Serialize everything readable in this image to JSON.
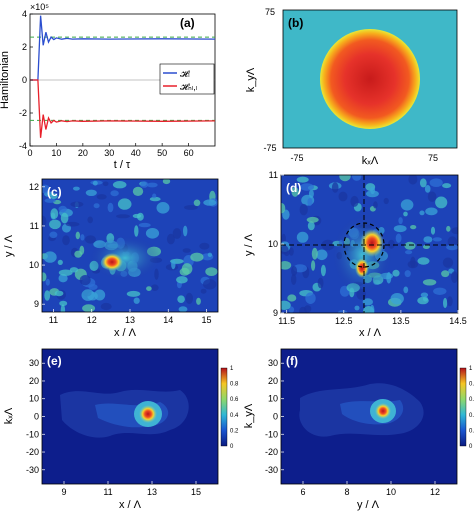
{
  "figure": {
    "panels": [
      {
        "id": "a",
        "label": "(a)",
        "xlabel": "t / τ",
        "ylabel": "Hamiltonian",
        "exponent": "×10⁵",
        "x_ticks": [
          "0",
          "10",
          "20",
          "30",
          "40",
          "50",
          "60"
        ],
        "y_ticks": [
          "4",
          "2",
          "0",
          "-2",
          "-4"
        ],
        "legend": [
          "𝓗ₗ",
          "𝓗ₙₗ,ₗ"
        ]
      },
      {
        "id": "b",
        "label": "(b)",
        "xlabel": "kₓΛ",
        "ylabel": "k_yΛ",
        "x_ticks": [
          "-75",
          "75"
        ],
        "y_ticks": [
          "75",
          "-75"
        ]
      },
      {
        "id": "c",
        "label": "(c)",
        "xlabel": "x / Λ",
        "ylabel": "y / Λ",
        "x_ticks": [
          "11",
          "12",
          "13",
          "14",
          "15"
        ],
        "y_ticks": [
          "12",
          "11",
          "10",
          "9"
        ]
      },
      {
        "id": "d",
        "label": "(d)",
        "xlabel": "x / Λ",
        "ylabel": "y / Λ",
        "x_ticks": [
          "11.5",
          "12.5",
          "13.5",
          "14.5"
        ],
        "y_ticks": [
          "11",
          "10",
          "9"
        ]
      },
      {
        "id": "e",
        "label": "(e)",
        "xlabel": "x / Λ",
        "ylabel": "kₓΛ",
        "x_ticks": [
          "9",
          "11",
          "13",
          "15"
        ],
        "y_ticks": [
          "30",
          "20",
          "10",
          "0",
          "-10",
          "-20",
          "-30"
        ],
        "colorbar_ticks": [
          "1",
          "0.8",
          "0.6",
          "0.4",
          "0.2",
          "0"
        ]
      },
      {
        "id": "f",
        "label": "(f)",
        "xlabel": "y / Λ",
        "ylabel": "k_yΛ",
        "x_ticks": [
          "6",
          "8",
          "10",
          "12"
        ],
        "y_ticks": [
          "30",
          "20",
          "10",
          "0",
          "-10",
          "-20",
          "-30"
        ],
        "colorbar_ticks": [
          "1",
          "0.8",
          "0.6",
          "0.4",
          "0.2",
          "0"
        ]
      }
    ],
    "colors": {
      "hl": "#2b4ecf",
      "hnl": "#e8202a",
      "ref": "#3aa845",
      "bg": "#3fb8c8",
      "deep": "#0d1e8c"
    }
  },
  "chart_data": [
    {
      "type": "line",
      "panel": "a",
      "xlabel": "t / τ",
      "ylabel": "Hamiltonian",
      "xlim": [
        0,
        70
      ],
      "ylim": [
        -4,
        4
      ],
      "y_scale": "×10⁵",
      "series": [
        {
          "name": "𝓗ₗ",
          "x": [
            0,
            3,
            4,
            5,
            6,
            7,
            8,
            9,
            10,
            12,
            14,
            16,
            20,
            30,
            50,
            70
          ],
          "y": [
            0,
            0,
            3.9,
            2.1,
            2.9,
            2.3,
            2.6,
            2.45,
            2.55,
            2.47,
            2.52,
            2.48,
            2.5,
            2.48,
            2.5,
            2.48
          ]
        },
        {
          "name": "𝓗ₙₗ,ₗ",
          "x": [
            0,
            3,
            4,
            5,
            6,
            7,
            8,
            9,
            10,
            12,
            14,
            16,
            20,
            30,
            50,
            70
          ],
          "y": [
            0,
            0,
            -3.5,
            -2.1,
            -3.0,
            -2.3,
            -2.6,
            -2.45,
            -2.55,
            -2.47,
            -2.52,
            -2.48,
            -2.5,
            -2.48,
            -2.5,
            -2.48
          ]
        }
      ],
      "reference_lines": [
        2.6,
        -2.45
      ]
    },
    {
      "type": "heatmap",
      "panel": "b",
      "xlim": [
        -75,
        75
      ],
      "ylim": [
        -75,
        75
      ],
      "feature": "disk",
      "center": [
        0,
        0
      ],
      "radius": 43
    },
    {
      "type": "heatmap",
      "panel": "c",
      "xlim": [
        10.7,
        15.3
      ],
      "ylim": [
        8.8,
        12.2
      ],
      "peak": [
        12.9,
        10.0
      ]
    },
    {
      "type": "heatmap",
      "panel": "d",
      "xlim": [
        11.4,
        14.5
      ],
      "ylim": [
        9.0,
        11.0
      ],
      "peak": [
        12.95,
        10.0
      ],
      "crosshair": [
        12.8,
        10.0
      ]
    },
    {
      "type": "heatmap",
      "panel": "e",
      "xlim": [
        8,
        16
      ],
      "ylim": [
        -38,
        38
      ],
      "peak": [
        13,
        0
      ],
      "clim": [
        0,
        1
      ]
    },
    {
      "type": "heatmap",
      "panel": "f",
      "xlim": [
        5,
        13
      ],
      "ylim": [
        -38,
        38
      ],
      "peak": [
        10,
        0
      ],
      "clim": [
        0,
        1
      ]
    }
  ]
}
